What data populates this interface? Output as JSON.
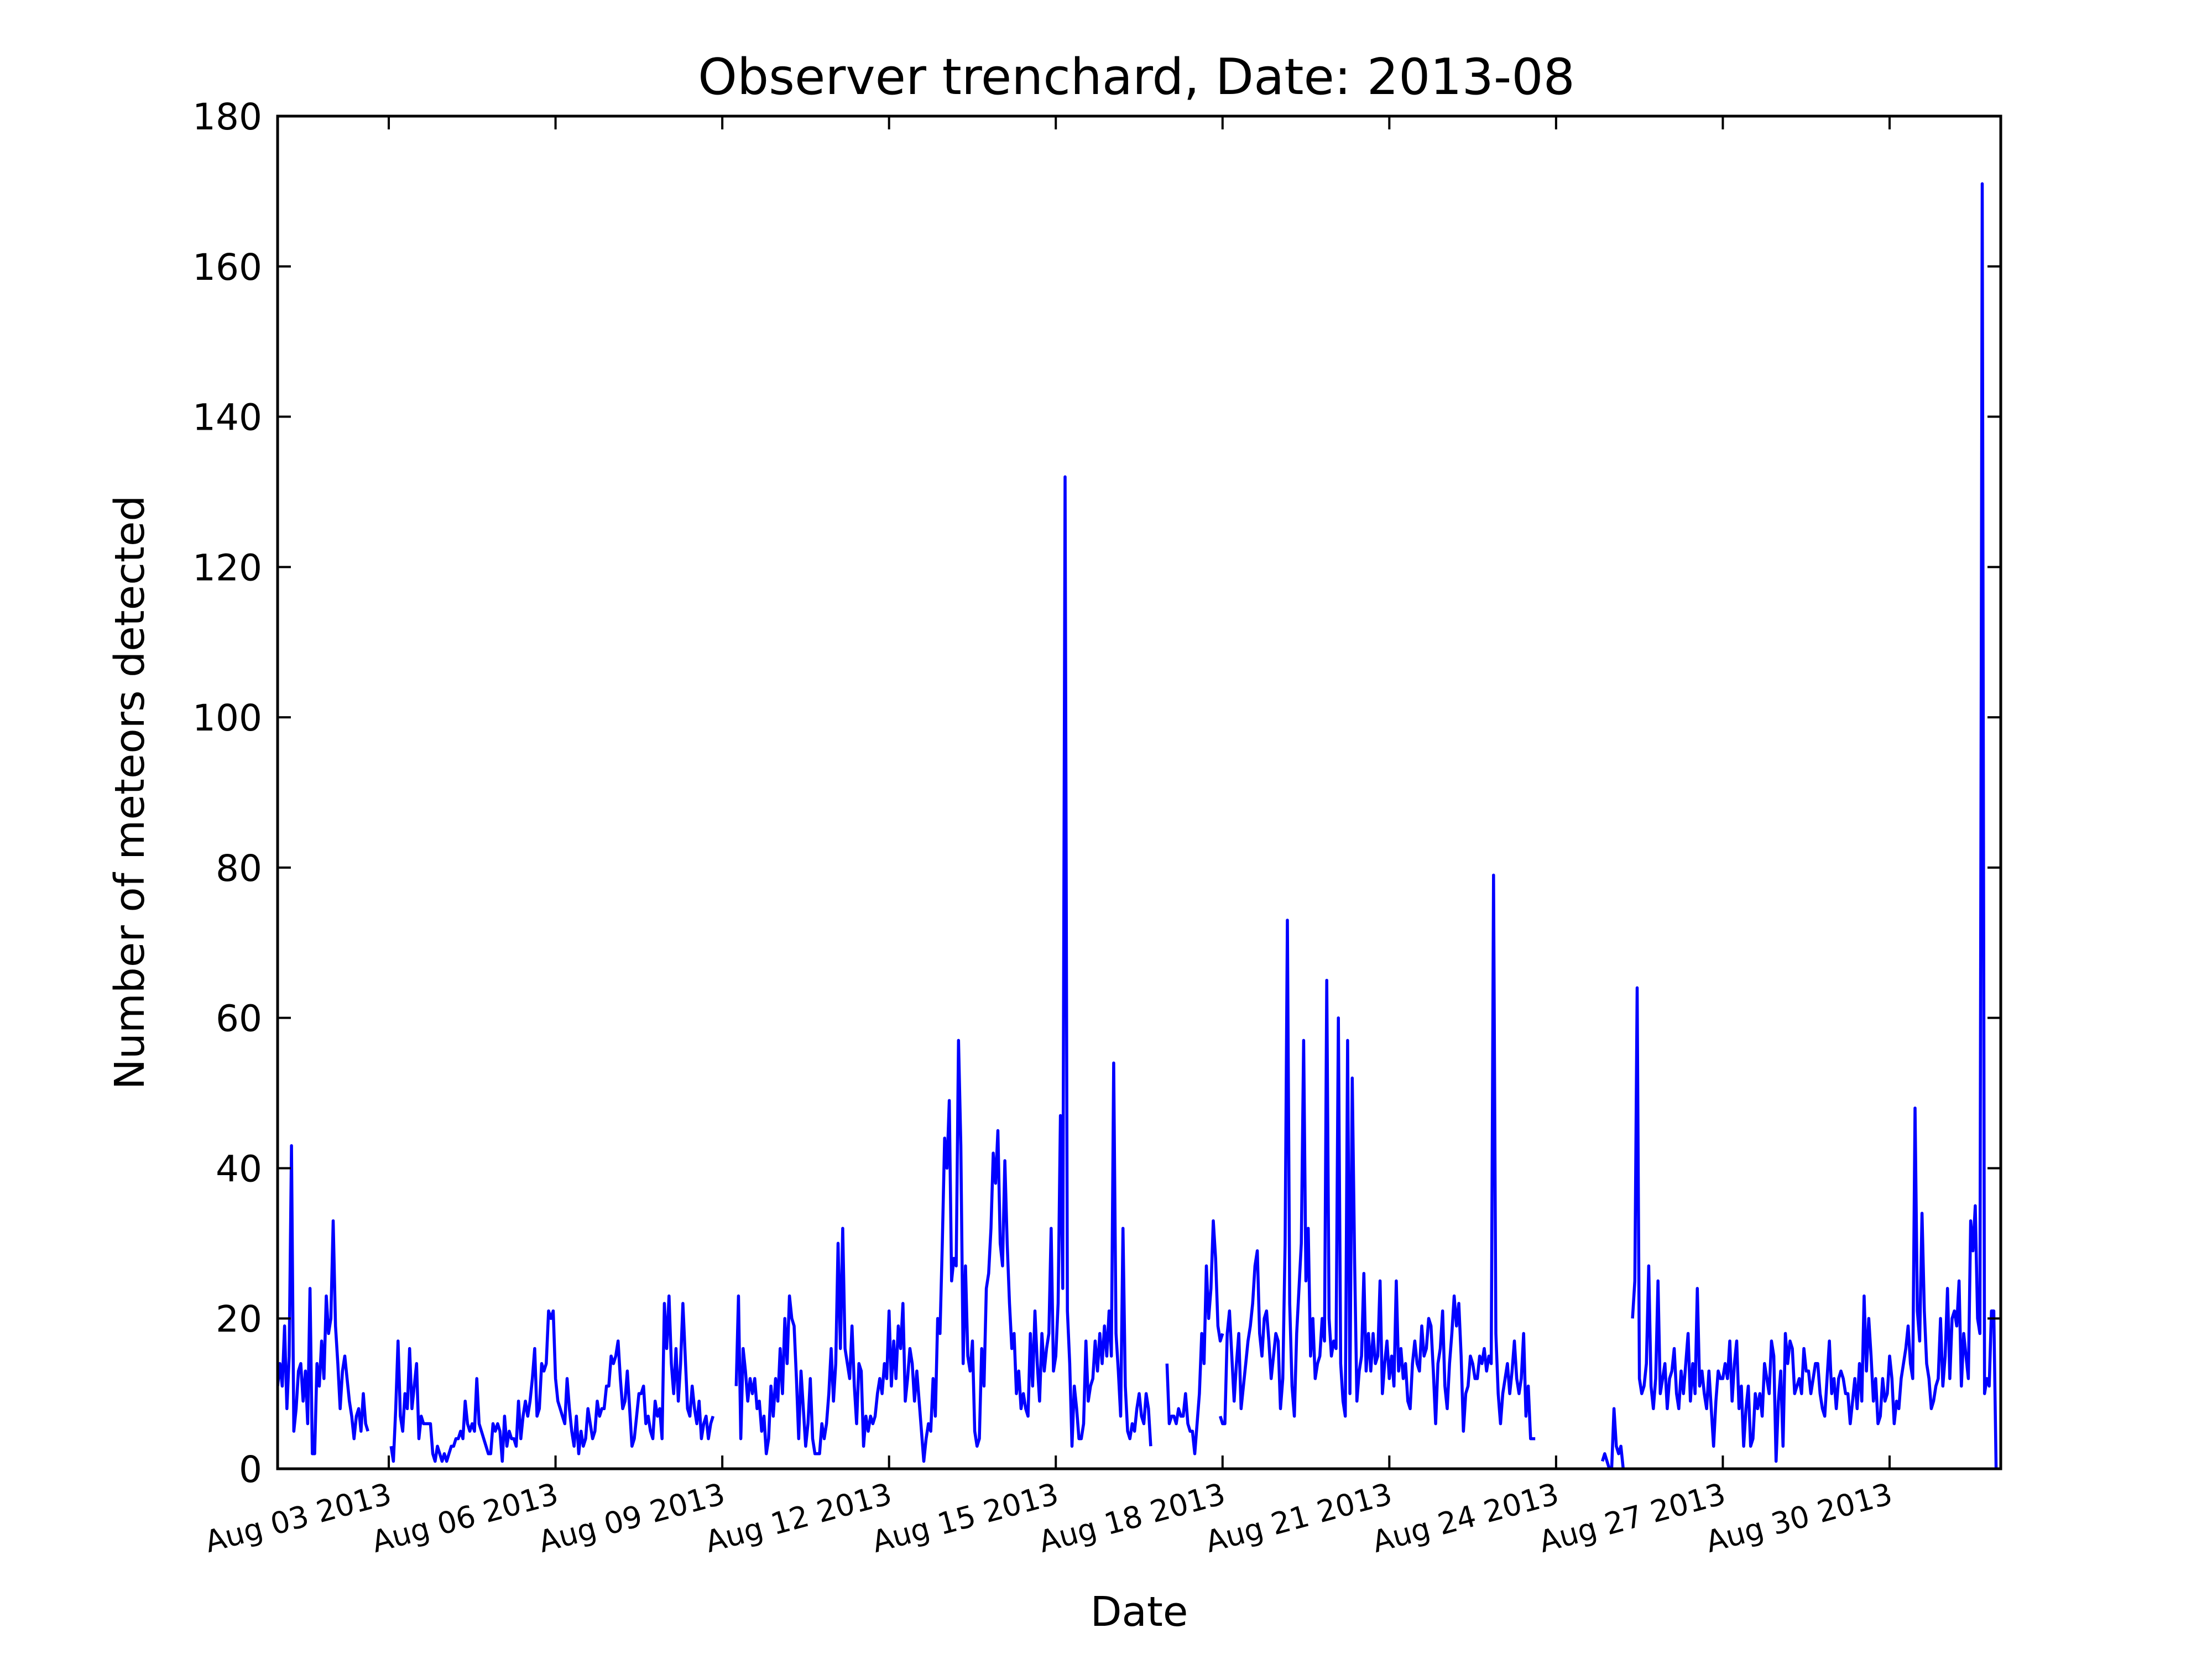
{
  "chart_data": {
    "type": "line",
    "title": "Observer trenchard, Date: 2013-08",
    "xlabel": "Date",
    "ylabel": "Number of meteors detected",
    "ylim": [
      0,
      180
    ],
    "xlim": [
      "2013-08-01 00:00",
      "2013-09-01 00:00"
    ],
    "yticks": [
      0,
      20,
      40,
      60,
      80,
      100,
      120,
      140,
      160,
      180
    ],
    "xticks": [
      {
        "date": "2013-08-03",
        "label": "Aug 03 2013"
      },
      {
        "date": "2013-08-06",
        "label": "Aug 06 2013"
      },
      {
        "date": "2013-08-09",
        "label": "Aug 09 2013"
      },
      {
        "date": "2013-08-12",
        "label": "Aug 12 2013"
      },
      {
        "date": "2013-08-15",
        "label": "Aug 15 2013"
      },
      {
        "date": "2013-08-18",
        "label": "Aug 18 2013"
      },
      {
        "date": "2013-08-21",
        "label": "Aug 21 2013"
      },
      {
        "date": "2013-08-24",
        "label": "Aug 24 2013"
      },
      {
        "date": "2013-08-27",
        "label": "Aug 27 2013"
      },
      {
        "date": "2013-08-30",
        "label": "Aug 30 2013"
      }
    ],
    "grid": false,
    "line_color": "#0000ff",
    "series": [
      {
        "segments": [
          {
            "start": "2013-08-01 00:00",
            "values": [
              11,
              14,
              11,
              19,
              8,
              15,
              43,
              5,
              8,
              13,
              14,
              9,
              13,
              6,
              24,
              2,
              2,
              14,
              11,
              17,
              12,
              23,
              18,
              20,
              33,
              19,
              14,
              8,
              13,
              15,
              12,
              9,
              7,
              4,
              7,
              8,
              5,
              10,
              6,
              5
            ]
          },
          {
            "start": "2013-08-03 01:00",
            "values": [
              3,
              1,
              8,
              17,
              7,
              5,
              10,
              8,
              16,
              8,
              11,
              14,
              4,
              7,
              6,
              6,
              6,
              6,
              2,
              1,
              3,
              2,
              1,
              2,
              1,
              2,
              3,
              3,
              4,
              4,
              5,
              4,
              9,
              6,
              5,
              6,
              5,
              12,
              6,
              5,
              4,
              3,
              2,
              2,
              6,
              5,
              6,
              5,
              1,
              7,
              3,
              5,
              4,
              4,
              3,
              9,
              4,
              7,
              9,
              7,
              9,
              12,
              16,
              7,
              8,
              14,
              13,
              14,
              21,
              20,
              21,
              12,
              9,
              8,
              7,
              6,
              12,
              8,
              5,
              3,
              7,
              2,
              5,
              3,
              4,
              8,
              6,
              4,
              5,
              9,
              7,
              8,
              8,
              11,
              11,
              15,
              14,
              15,
              17,
              12,
              8,
              9,
              13,
              8,
              3,
              4,
              7,
              10,
              10,
              11,
              6,
              7,
              5,
              4,
              9,
              7,
              8,
              4,
              22,
              16,
              23,
              14,
              10,
              16,
              9,
              14,
              22,
              15,
              8,
              7,
              11,
              8,
              6,
              9,
              4,
              6,
              7,
              4,
              6,
              7
            ]
          },
          {
            "start": "2013-08-09 06:00",
            "values": [
              11,
              23,
              4,
              16,
              13,
              9,
              12,
              10,
              12,
              8,
              9,
              5,
              7,
              2,
              4,
              11,
              7,
              12,
              9,
              16,
              10,
              20,
              14,
              23,
              20,
              19,
              12,
              4,
              13,
              8,
              3,
              6,
              12,
              4,
              2,
              2,
              2,
              6,
              4,
              6,
              10,
              16,
              9,
              14,
              30,
              16,
              32,
              16,
              14,
              12,
              19,
              11,
              6,
              14,
              13,
              3,
              7,
              5,
              7,
              6,
              7,
              10,
              12,
              10,
              14,
              12,
              21,
              11,
              17,
              12,
              19,
              16,
              22,
              9,
              12,
              16,
              14,
              9,
              13,
              9,
              5,
              1,
              4,
              6,
              5,
              12,
              7,
              20,
              18,
              30,
              44,
              40,
              49,
              25,
              28,
              27,
              57,
              43,
              14,
              27,
              15,
              13,
              17,
              5,
              3,
              4,
              16,
              11,
              24,
              26,
              32,
              42,
              38,
              45,
              30,
              27,
              41,
              30,
              22,
              16,
              18,
              10,
              13,
              8,
              10,
              8,
              7,
              18,
              11,
              21,
              14,
              9,
              18,
              13,
              16,
              18,
              32,
              13,
              15,
              22,
              47,
              24,
              132,
              21,
              14,
              3,
              11,
              8,
              4,
              4,
              6,
              17,
              9,
              11,
              12,
              17,
              13,
              18,
              14,
              19,
              15,
              21,
              15,
              54,
              18,
              13,
              7,
              32,
              11,
              5,
              4,
              6,
              5,
              8,
              10,
              7,
              6,
              10,
              8,
              3
            ]
          },
          {
            "start": "2013-08-17 00:00",
            "values": [
              14,
              6,
              7,
              7,
              6,
              8,
              7,
              7,
              10,
              6,
              5,
              5,
              2,
              6,
              10,
              18,
              14,
              27,
              20,
              24,
              33,
              28,
              19,
              17,
              18
            ]
          },
          {
            "start": "2013-08-17 23:00",
            "values": [
              7,
              6,
              6,
              18,
              21,
              15,
              9,
              14,
              18,
              8,
              11,
              14,
              17,
              19,
              22,
              27,
              29,
              18,
              15,
              20,
              21,
              17,
              12,
              15,
              18,
              17,
              8,
              12,
              30,
              73,
              22,
              11,
              7,
              18,
              24,
              30,
              57,
              25,
              32,
              15,
              20,
              12,
              14,
              15,
              20,
              17,
              65,
              20,
              15,
              17,
              16,
              60,
              14,
              9,
              7,
              57,
              10,
              52,
              28,
              9,
              13,
              15,
              26,
              13,
              18,
              13,
              18,
              14,
              15,
              25,
              10,
              14,
              17,
              12,
              15,
              11,
              25,
              13,
              16,
              12,
              14,
              9,
              8,
              14,
              17,
              14,
              13,
              19,
              15,
              16,
              20,
              19,
              13,
              6,
              14,
              16,
              21,
              11,
              8,
              14,
              18,
              23,
              19,
              22,
              15,
              5,
              10,
              11,
              15,
              14,
              12,
              12,
              15,
              14,
              16,
              13,
              15,
              14,
              79,
              18,
              10,
              6,
              10,
              12,
              14,
              10,
              13,
              17,
              12,
              10,
              12,
              18,
              7,
              11,
              4,
              4,
              4
            ]
          }
        ]
      },
      {
        "segments": [
          {
            "start": "2013-08-24 20:00",
            "values": [
              1,
              2,
              1,
              0,
              0,
              8,
              3,
              2,
              3,
              0
            ]
          },
          {
            "start": "2013-08-25 09:00",
            "values": [
              20,
              25,
              64,
              12,
              10,
              11,
              14,
              27,
              11,
              8,
              12,
              25,
              10,
              12,
              14,
              8,
              12,
              13,
              16,
              10,
              8,
              13,
              10,
              14,
              18,
              9,
              14,
              10,
              24,
              11,
              13,
              10,
              8,
              13,
              8,
              3,
              9,
              13,
              12,
              12,
              14,
              12,
              17,
              9,
              14,
              17,
              8,
              11,
              3,
              8,
              11,
              3,
              4,
              10,
              8,
              10,
              7,
              14,
              12,
              10,
              17,
              15,
              1,
              9,
              13,
              3,
              18,
              14,
              17,
              16,
              10,
              11,
              12,
              10,
              16,
              13,
              13,
              10,
              12,
              14,
              14,
              10,
              8,
              7,
              12,
              17,
              10,
              12,
              8,
              12,
              13,
              12,
              10,
              10,
              6,
              9,
              12,
              8,
              14,
              9,
              23,
              13,
              20,
              15,
              9,
              12,
              6,
              7,
              12,
              9,
              10,
              15,
              12,
              6,
              9,
              8,
              12,
              14,
              16,
              19,
              14,
              12,
              48,
              21,
              17,
              34,
              21,
              14,
              12,
              8,
              9,
              11,
              12,
              20,
              11,
              15,
              24,
              12,
              20,
              21,
              19,
              25,
              11,
              18,
              15,
              12,
              33,
              29,
              35,
              20,
              18,
              171,
              10,
              12,
              11,
              21,
              21,
              0
            ]
          }
        ]
      }
    ]
  }
}
